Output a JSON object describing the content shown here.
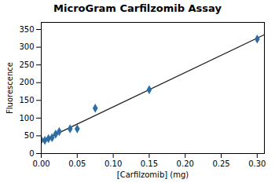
{
  "chart_data": {
    "type": "scatter",
    "title": "MicroGram Carfilzomib Assay",
    "xlabel": "[Carfilzomib] (mg)",
    "ylabel": "Fluorescence",
    "series": [
      {
        "type": "line",
        "color": "#1a1a1a",
        "x": [
          0,
          0.31
        ],
        "values": [
          34.642,
          335.179
        ]
      },
      {
        "type": "scatter",
        "color": "#2E6CA4",
        "marker": "diamond",
        "x": [
          0.0,
          0.005,
          0.01,
          0.015,
          0.02,
          0.025,
          0.04,
          0.05,
          0.075,
          0.15,
          0.3
        ],
        "values": [
          38,
          37,
          42,
          45,
          55,
          62,
          70,
          70,
          128,
          180,
          323
        ]
      }
    ],
    "xlim": [
      0,
      0.31
    ],
    "ylim": [
      0,
      370
    ],
    "xticks": [
      {
        "value": 0,
        "label": "0.00"
      },
      {
        "value": 0.05,
        "label": "0.05"
      },
      {
        "value": 0.1,
        "label": "0.10"
      },
      {
        "value": 0.15,
        "label": "0.15"
      },
      {
        "value": 0.2,
        "label": "0.20"
      },
      {
        "value": 0.25,
        "label": "0.25"
      },
      {
        "value": 0.3,
        "label": "0.30"
      }
    ],
    "yticks": [
      0,
      50,
      100,
      150,
      200,
      250,
      300,
      350
    ]
  }
}
